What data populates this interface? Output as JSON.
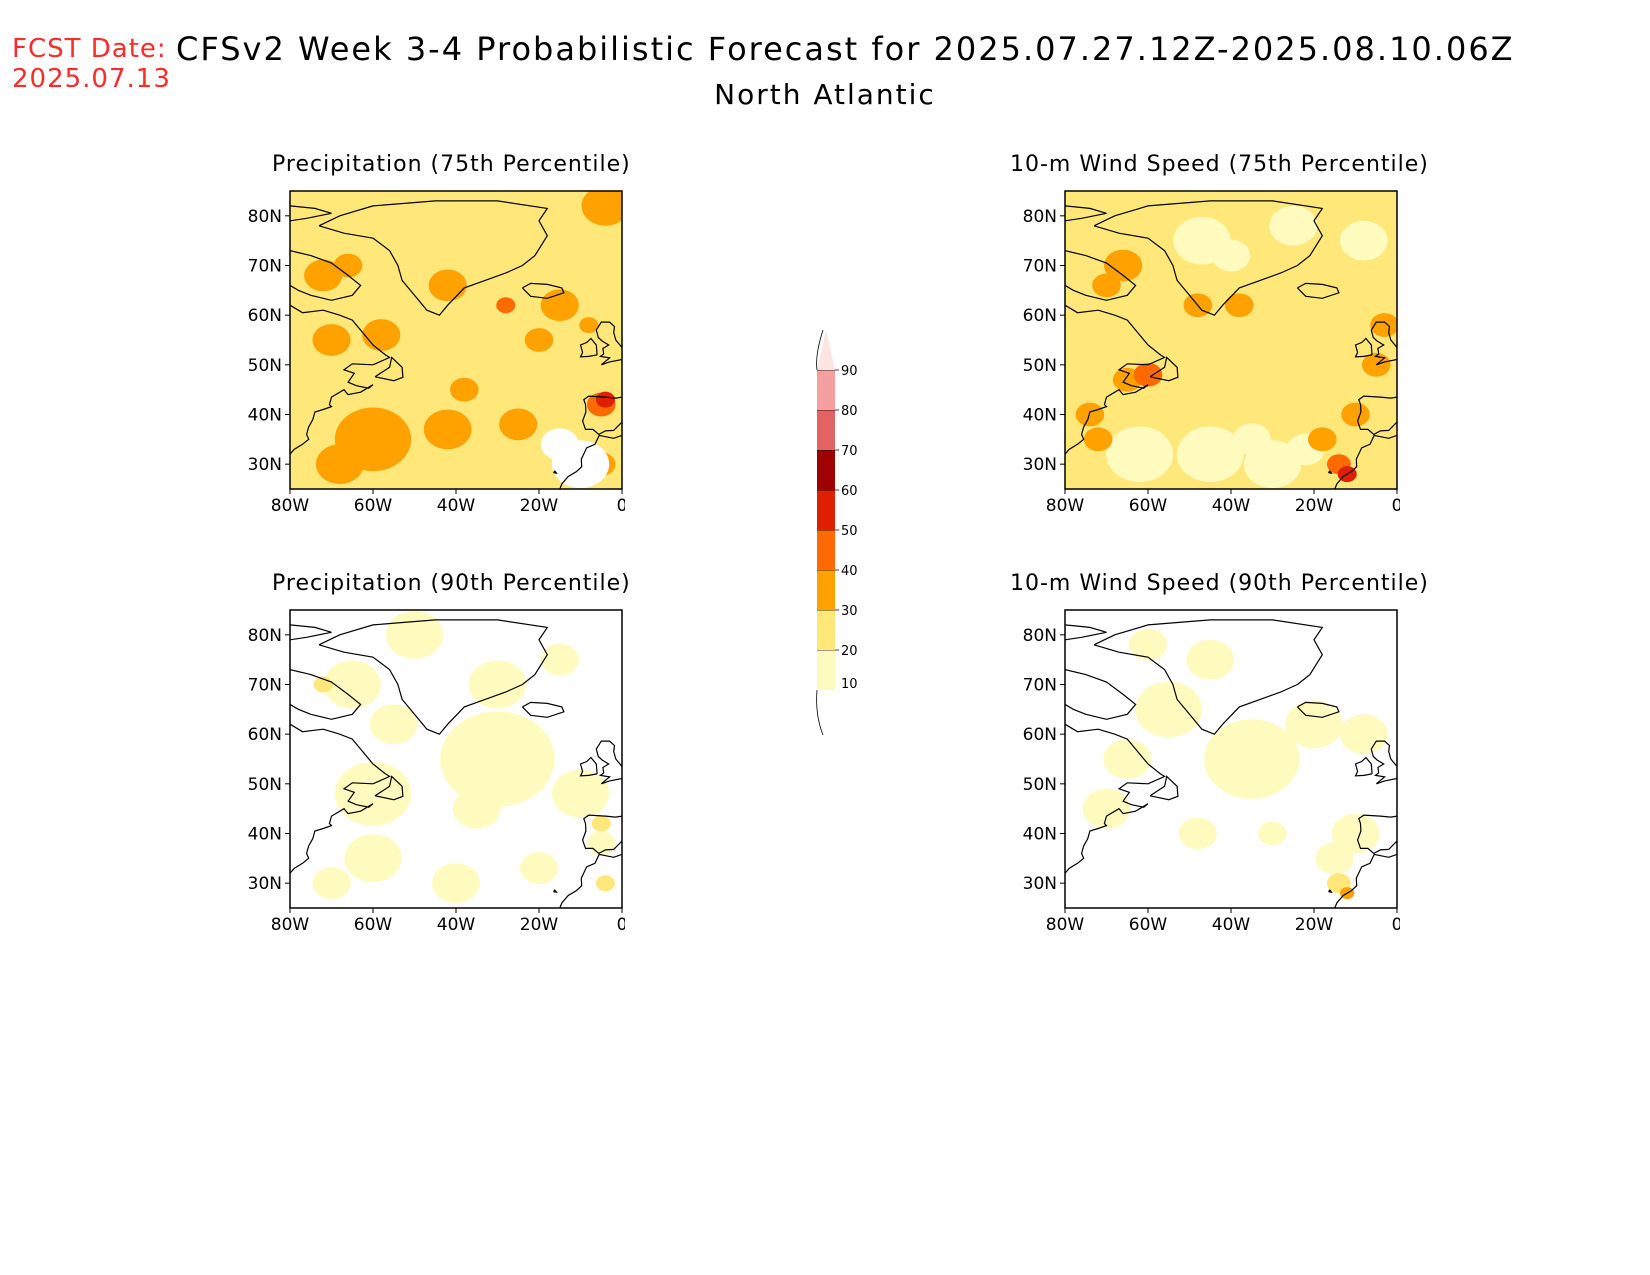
{
  "header": {
    "fcst_label": "FCST Date:",
    "fcst_date": "2025.07.13",
    "title": "CFSv2 Week 3-4 Probabilistic Forecast for 2025.07.27.12Z-2025.08.10.06Z",
    "subtitle": "North Atlantic"
  },
  "panels": [
    {
      "title": "Precipitation (75th Percentile)",
      "variable": "precipitation",
      "percentile": "75th"
    },
    {
      "title": "10-m Wind Speed (75th Percentile)",
      "variable": "10-m wind speed",
      "percentile": "75th"
    },
    {
      "title": "Precipitation (90th Percentile)",
      "variable": "precipitation",
      "percentile": "90th"
    },
    {
      "title": "10-m Wind Speed (90th Percentile)",
      "variable": "10-m wind speed",
      "percentile": "90th"
    }
  ],
  "map": {
    "lat_ticks": [
      "80N",
      "70N",
      "60N",
      "50N",
      "40N",
      "30N"
    ],
    "lon_ticks": [
      "80W",
      "60W",
      "40W",
      "20W",
      "0"
    ],
    "lat_range": [
      25,
      85
    ],
    "lon_range": [
      -80,
      0
    ]
  },
  "colorbar": {
    "levels": [
      "10",
      "20",
      "30",
      "40",
      "50",
      "60",
      "70",
      "80",
      "90"
    ],
    "colors": [
      "#fffbbf",
      "#ffe77a",
      "#ffa200",
      "#ff6a00",
      "#e01f00",
      "#a00000",
      "#e06464",
      "#f2a0a0",
      "#ffe4e4"
    ]
  }
}
